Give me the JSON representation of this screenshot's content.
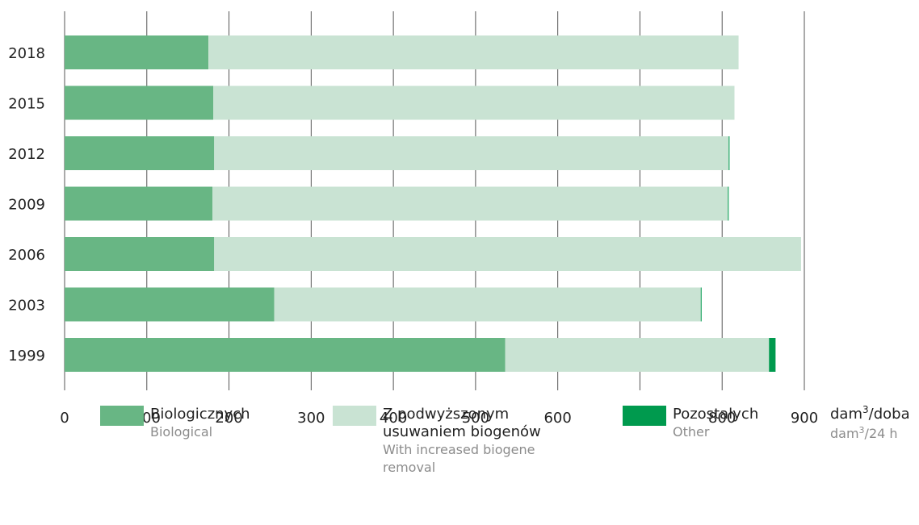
{
  "chart_data": {
    "type": "bar",
    "orientation": "horizontal",
    "stacked": true,
    "categories": [
      "2018",
      "2015",
      "2012",
      "2009",
      "2006",
      "2003",
      "1999"
    ],
    "series": [
      {
        "name": "Biologicznych",
        "name_en": "Biological",
        "color": "#68b684",
        "values": [
          175,
          181,
          182,
          180,
          182,
          255,
          536
        ]
      },
      {
        "name": "Z podwyższonym usuwaniem biogenów",
        "name_en": "With increased biogene removal",
        "color": "#c9e3d3",
        "values": [
          645,
          634,
          626,
          627,
          714,
          519,
          321
        ]
      },
      {
        "name": "Pozostałych",
        "name_en": "Other",
        "color": "#009a4e",
        "values": [
          0,
          0,
          1,
          1,
          0,
          1,
          8
        ]
      }
    ],
    "xlim": [
      0,
      900
    ],
    "xticks": [
      "0",
      "100",
      "200",
      "300",
      "400",
      "500",
      "600",
      "700",
      "800",
      "900"
    ],
    "grid": "vertical",
    "legend_position": "bottom",
    "unit": {
      "main": "dam",
      "main_sup": "3",
      "main_suffix": "/doba",
      "sub": "dam",
      "sub_sup": "3",
      "sub_suffix": "/24 h"
    }
  },
  "legend": {
    "items": [
      {
        "pl": "Biologicznych",
        "en": "Biological"
      },
      {
        "pl_line1": "Z podwyższonym",
        "pl_line2": "usuwaniem biogenów",
        "en_line1": "With increased biogene",
        "en_line2": "removal"
      },
      {
        "pl": "Pozostałych",
        "en": "Other"
      }
    ]
  }
}
